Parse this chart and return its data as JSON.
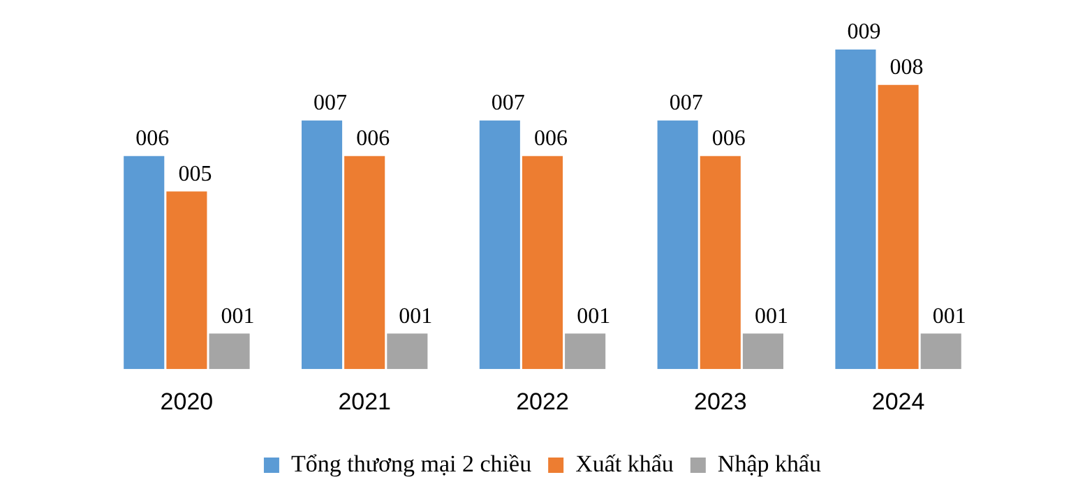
{
  "chart_data": {
    "type": "bar",
    "categories": [
      "2020",
      "2021",
      "2022",
      "2023",
      "2024"
    ],
    "series": [
      {
        "name": "Tổng thương mại 2 chiều",
        "color": "#5b9bd5",
        "values": [
          6,
          7,
          7,
          7,
          9
        ],
        "value_labels": [
          "006",
          "007",
          "007",
          "007",
          "009"
        ]
      },
      {
        "name": "Xuất khẩu",
        "color": "#ed7d31",
        "values": [
          5,
          6,
          6,
          6,
          8
        ],
        "value_labels": [
          "005",
          "006",
          "006",
          "006",
          "008"
        ]
      },
      {
        "name": "Nhập khẩu",
        "color": "#a5a5a5",
        "values": [
          1,
          1,
          1,
          1,
          1
        ],
        "value_labels": [
          "001",
          "001",
          "001",
          "001",
          "001"
        ]
      }
    ],
    "legend": "bottom",
    "grid": false
  }
}
